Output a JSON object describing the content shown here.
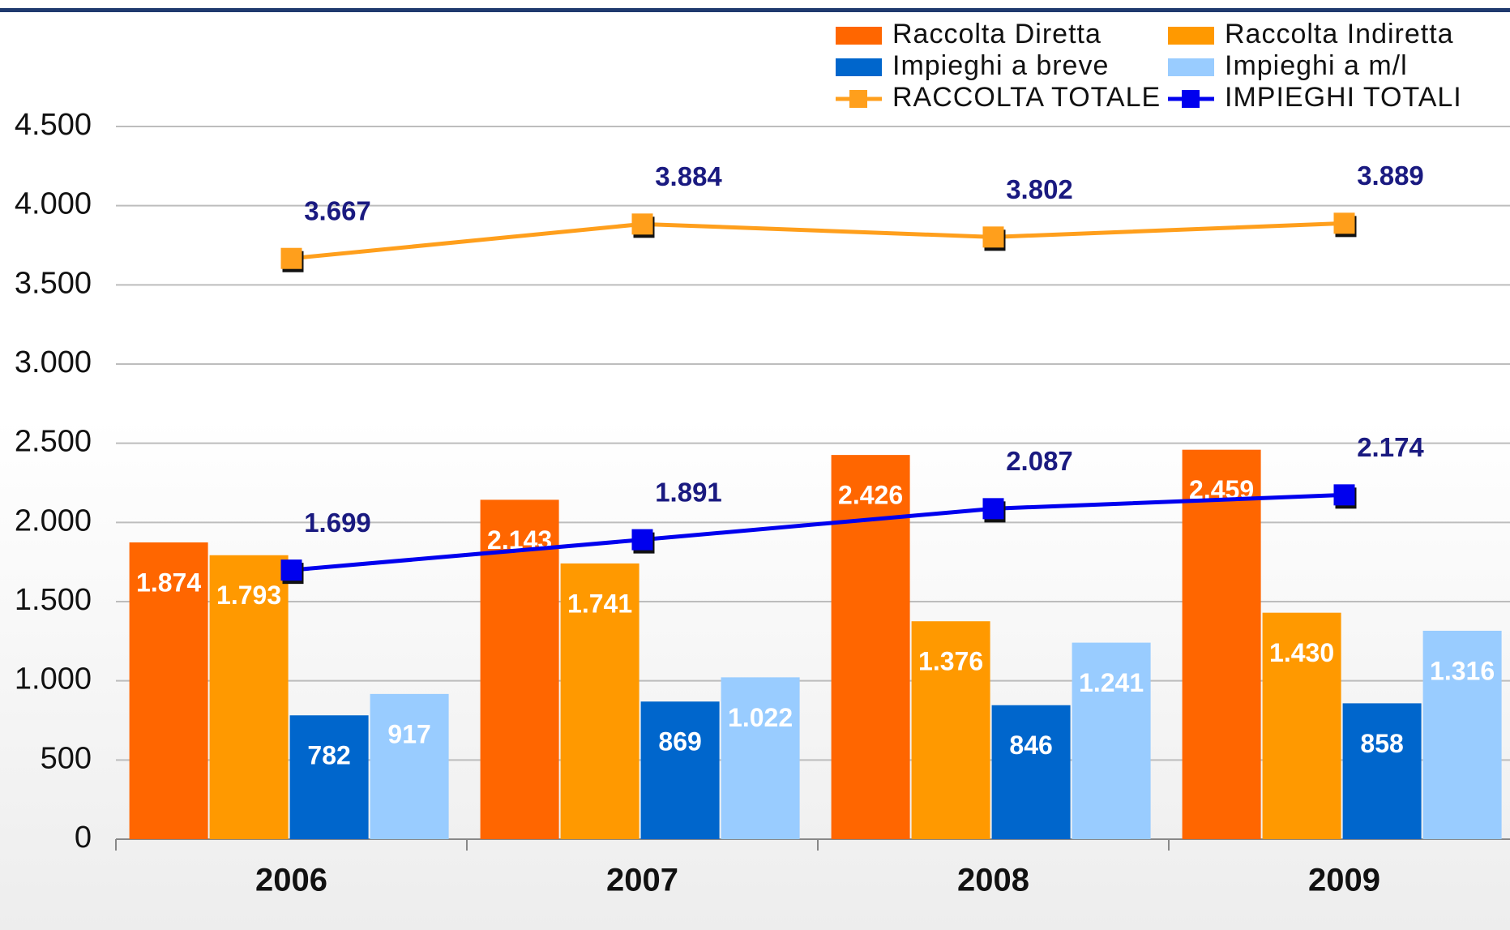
{
  "chart_data": {
    "type": "bar",
    "categories": [
      "2006",
      "2007",
      "2008",
      "2009"
    ],
    "series": [
      {
        "name": "Raccolta Diretta",
        "color": "#ff6600",
        "values": [
          1874,
          2143,
          2426,
          2459
        ],
        "value_labels": [
          "1.874",
          "2.143",
          "2.426",
          "2.459"
        ]
      },
      {
        "name": "Raccolta Indiretta",
        "color": "#ff9900",
        "values": [
          1793,
          1741,
          1376,
          1430
        ],
        "value_labels": [
          "1.793",
          "1.741",
          "1.376",
          "1.430"
        ]
      },
      {
        "name": "Impieghi a breve",
        "color": "#0066cc",
        "values": [
          782,
          869,
          846,
          858
        ]
      },
      {
        "name": "Impieghi a m/l",
        "color": "#99ccff",
        "values": [
          917,
          1022,
          1241,
          1316
        ],
        "value_labels": [
          "917",
          "1.022",
          "1.241",
          "1.316"
        ]
      },
      {
        "name": "RACCOLTA TOTALE",
        "type": "line",
        "color": "#ff9f1c",
        "values": [
          3667,
          3884,
          3802,
          3889
        ],
        "value_labels": [
          "3.667",
          "3.884",
          "3.802",
          "3.889"
        ]
      },
      {
        "name": "IMPIEGHI TOTALI",
        "type": "line",
        "color": "#0000ee",
        "values": [
          1699,
          1891,
          2087,
          2174
        ],
        "value_labels": [
          "1.699",
          "1.891",
          "2.087",
          "2.174"
        ]
      }
    ],
    "ylim": [
      0,
      4500
    ],
    "yticks": [
      0,
      500,
      {
        "value": 1000,
        "label": "1.000"
      },
      {
        "value": 1500,
        "label": "1.500"
      },
      {
        "value": 2000,
        "label": "2.000"
      },
      {
        "value": 2500,
        "label": "2.500"
      },
      {
        "value": 3000,
        "label": "3.000"
      },
      {
        "value": 3500,
        "label": "3.500"
      },
      {
        "value": 4000,
        "label": "4.000"
      },
      {
        "value": 4500,
        "label": "4.500"
      }
    ],
    "grid": true,
    "legend": "top-right"
  }
}
